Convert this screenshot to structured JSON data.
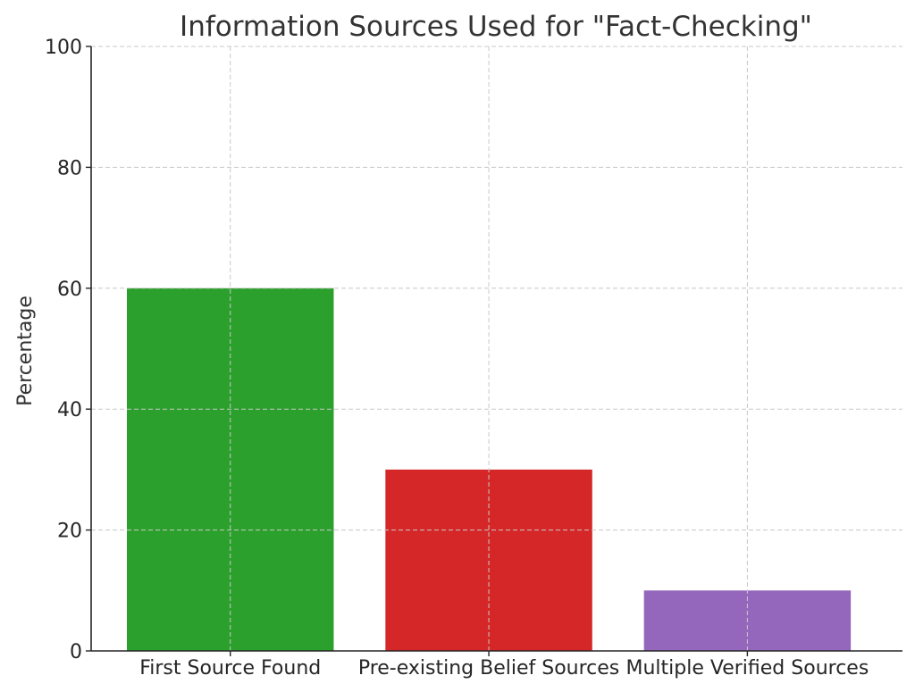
{
  "chart_data": {
    "type": "bar",
    "title": "Information Sources Used for \"Fact-Checking\"",
    "xlabel": "",
    "ylabel": "Percentage",
    "categories": [
      "First Source Found",
      "Pre-existing Belief Sources",
      "Multiple Verified Sources"
    ],
    "values": [
      60,
      30,
      10
    ],
    "colors": [
      "#2ca02c",
      "#d62728",
      "#9467bd"
    ],
    "ylim": [
      0,
      100
    ],
    "yticks": [
      0,
      20,
      40,
      60,
      80,
      100
    ],
    "grid": true,
    "legend": "none"
  }
}
